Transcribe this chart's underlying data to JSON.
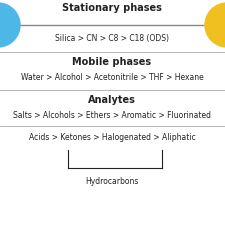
{
  "title_stationary": "Stationary phases",
  "title_mobile": "Mobile phases",
  "title_analytes": "Analytes",
  "stationary_text": "Silica > CN > C8 > C18 (ODS)",
  "mobile_text": "Water > Alcohol > Acetonitrile > THF > Hexane",
  "analytes_line1": "Salts > Alcohols > Ethers > Aromatic > Fluorinated",
  "analytes_line2": "Acids > Ketones > Halogenated > Aliphatic",
  "hydrocarbons_label": "Hydrocarbons",
  "circle_left_color": "#4db8e8",
  "circle_right_color": "#f0c020",
  "line_color": "#888888",
  "divider_color": "#aaaaaa",
  "bg_color": "#ffffff",
  "text_color": "#222222",
  "title_fontsize": 7.0,
  "body_fontsize": 5.5
}
